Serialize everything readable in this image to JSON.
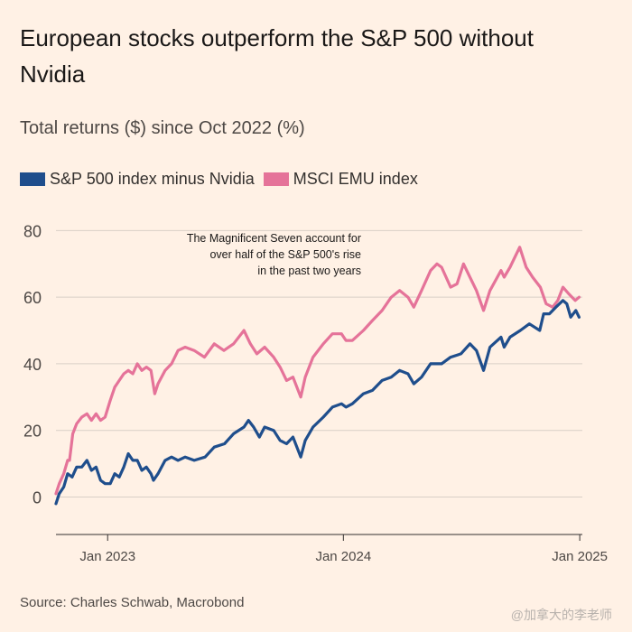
{
  "title": "European stocks outperform the S&P 500 without Nvidia",
  "subtitle": "Total returns ($) since Oct 2022 (%)",
  "source": "Source: Charles Schwab, Macrobond",
  "watermark": "@加拿大的李老师",
  "colors": {
    "background": "#fff1e5",
    "grid": "#d9d0c7",
    "axis": "#33302e",
    "sp500": "#1f4e8c",
    "msci": "#e57399"
  },
  "chart_data": {
    "type": "line",
    "ylim": [
      -8,
      82
    ],
    "yticks": [
      0,
      20,
      40,
      60,
      80
    ],
    "x_range": [
      "2022-10-13",
      "2025-01-05"
    ],
    "xticks": [
      {
        "date": "2023-01-01",
        "label": "Jan 2023"
      },
      {
        "date": "2024-01-01",
        "label": "Jan 2024"
      },
      {
        "date": "2025-01-01",
        "label": "Jan 2025"
      }
    ],
    "annotation": "The Magnificent Seven account for over half of the S&P 500's rise in the past two years",
    "grid": "horizontal",
    "series": [
      {
        "name": "S&P 500 index minus Nvidia",
        "color": "#1f4e8c",
        "points": [
          [
            "2022-10-13",
            -2
          ],
          [
            "2022-10-18",
            1
          ],
          [
            "2022-10-25",
            3
          ],
          [
            "2022-10-31",
            7
          ],
          [
            "2022-11-07",
            6
          ],
          [
            "2022-11-14",
            9
          ],
          [
            "2022-11-22",
            9
          ],
          [
            "2022-11-30",
            11
          ],
          [
            "2022-12-07",
            8
          ],
          [
            "2022-12-14",
            9
          ],
          [
            "2022-12-21",
            5
          ],
          [
            "2022-12-28",
            4
          ],
          [
            "2023-01-05",
            4
          ],
          [
            "2023-01-12",
            7
          ],
          [
            "2023-01-19",
            6
          ],
          [
            "2023-01-26",
            9
          ],
          [
            "2023-02-02",
            13
          ],
          [
            "2023-02-09",
            11
          ],
          [
            "2023-02-16",
            11
          ],
          [
            "2023-02-23",
            8
          ],
          [
            "2023-03-02",
            9
          ],
          [
            "2023-03-09",
            7
          ],
          [
            "2023-03-13",
            5
          ],
          [
            "2023-03-20",
            7
          ],
          [
            "2023-03-31",
            11
          ],
          [
            "2023-04-10",
            12
          ],
          [
            "2023-04-20",
            11
          ],
          [
            "2023-05-01",
            12
          ],
          [
            "2023-05-15",
            11
          ],
          [
            "2023-06-01",
            12
          ],
          [
            "2023-06-15",
            15
          ],
          [
            "2023-07-01",
            16
          ],
          [
            "2023-07-15",
            19
          ],
          [
            "2023-07-31",
            21
          ],
          [
            "2023-08-07",
            23
          ],
          [
            "2023-08-15",
            21
          ],
          [
            "2023-08-24",
            18
          ],
          [
            "2023-09-01",
            21
          ],
          [
            "2023-09-15",
            20
          ],
          [
            "2023-09-25",
            17
          ],
          [
            "2023-10-05",
            16
          ],
          [
            "2023-10-15",
            18
          ],
          [
            "2023-10-27",
            12
          ],
          [
            "2023-11-03",
            17
          ],
          [
            "2023-11-15",
            21
          ],
          [
            "2023-12-01",
            24
          ],
          [
            "2023-12-15",
            27
          ],
          [
            "2023-12-29",
            28
          ],
          [
            "2024-01-05",
            27
          ],
          [
            "2024-01-15",
            28
          ],
          [
            "2024-02-01",
            31
          ],
          [
            "2024-02-15",
            32
          ],
          [
            "2024-03-01",
            35
          ],
          [
            "2024-03-15",
            36
          ],
          [
            "2024-03-28",
            38
          ],
          [
            "2024-04-10",
            37
          ],
          [
            "2024-04-19",
            34
          ],
          [
            "2024-05-01",
            36
          ],
          [
            "2024-05-15",
            40
          ],
          [
            "2024-06-01",
            40
          ],
          [
            "2024-06-15",
            42
          ],
          [
            "2024-07-01",
            43
          ],
          [
            "2024-07-15",
            46
          ],
          [
            "2024-07-25",
            44
          ],
          [
            "2024-08-05",
            38
          ],
          [
            "2024-08-15",
            45
          ],
          [
            "2024-09-01",
            48
          ],
          [
            "2024-09-06",
            45
          ],
          [
            "2024-09-15",
            48
          ],
          [
            "2024-10-01",
            50
          ],
          [
            "2024-10-15",
            52
          ],
          [
            "2024-10-31",
            50
          ],
          [
            "2024-11-06",
            55
          ],
          [
            "2024-11-15",
            55
          ],
          [
            "2024-11-25",
            57
          ],
          [
            "2024-12-06",
            59
          ],
          [
            "2024-12-12",
            58
          ],
          [
            "2024-12-18",
            54
          ],
          [
            "2024-12-26",
            56
          ],
          [
            "2024-12-31",
            54
          ]
        ]
      },
      {
        "name": "MSCI EMU index",
        "color": "#e57399",
        "points": [
          [
            "2022-10-13",
            1
          ],
          [
            "2022-10-18",
            4
          ],
          [
            "2022-10-25",
            7
          ],
          [
            "2022-10-31",
            11
          ],
          [
            "2022-11-03",
            11
          ],
          [
            "2022-11-08",
            19
          ],
          [
            "2022-11-14",
            22
          ],
          [
            "2022-11-22",
            24
          ],
          [
            "2022-11-30",
            25
          ],
          [
            "2022-12-07",
            23
          ],
          [
            "2022-12-14",
            25
          ],
          [
            "2022-12-21",
            23
          ],
          [
            "2022-12-28",
            24
          ],
          [
            "2023-01-05",
            29
          ],
          [
            "2023-01-12",
            33
          ],
          [
            "2023-01-19",
            35
          ],
          [
            "2023-01-26",
            37
          ],
          [
            "2023-02-02",
            38
          ],
          [
            "2023-02-09",
            37
          ],
          [
            "2023-02-16",
            40
          ],
          [
            "2023-02-23",
            38
          ],
          [
            "2023-03-02",
            39
          ],
          [
            "2023-03-09",
            38
          ],
          [
            "2023-03-15",
            31
          ],
          [
            "2023-03-20",
            34
          ],
          [
            "2023-03-31",
            38
          ],
          [
            "2023-04-10",
            40
          ],
          [
            "2023-04-20",
            44
          ],
          [
            "2023-05-01",
            45
          ],
          [
            "2023-05-15",
            44
          ],
          [
            "2023-05-31",
            42
          ],
          [
            "2023-06-15",
            46
          ],
          [
            "2023-06-30",
            44
          ],
          [
            "2023-07-15",
            46
          ],
          [
            "2023-07-31",
            50
          ],
          [
            "2023-08-10",
            46
          ],
          [
            "2023-08-20",
            43
          ],
          [
            "2023-09-01",
            45
          ],
          [
            "2023-09-15",
            42
          ],
          [
            "2023-09-25",
            39
          ],
          [
            "2023-10-05",
            35
          ],
          [
            "2023-10-15",
            36
          ],
          [
            "2023-10-27",
            30
          ],
          [
            "2023-11-03",
            36
          ],
          [
            "2023-11-15",
            42
          ],
          [
            "2023-12-01",
            46
          ],
          [
            "2023-12-15",
            49
          ],
          [
            "2023-12-29",
            49
          ],
          [
            "2024-01-05",
            47
          ],
          [
            "2024-01-15",
            47
          ],
          [
            "2024-02-01",
            50
          ],
          [
            "2024-02-15",
            53
          ],
          [
            "2024-03-01",
            56
          ],
          [
            "2024-03-15",
            60
          ],
          [
            "2024-03-28",
            62
          ],
          [
            "2024-04-10",
            60
          ],
          [
            "2024-04-19",
            57
          ],
          [
            "2024-05-01",
            62
          ],
          [
            "2024-05-15",
            68
          ],
          [
            "2024-05-25",
            70
          ],
          [
            "2024-06-01",
            69
          ],
          [
            "2024-06-15",
            63
          ],
          [
            "2024-06-25",
            64
          ],
          [
            "2024-07-05",
            70
          ],
          [
            "2024-07-15",
            66
          ],
          [
            "2024-07-25",
            62
          ],
          [
            "2024-08-05",
            56
          ],
          [
            "2024-08-15",
            62
          ],
          [
            "2024-09-01",
            68
          ],
          [
            "2024-09-06",
            66
          ],
          [
            "2024-09-15",
            69
          ],
          [
            "2024-09-30",
            75
          ],
          [
            "2024-10-10",
            69
          ],
          [
            "2024-10-20",
            66
          ],
          [
            "2024-11-01",
            63
          ],
          [
            "2024-11-10",
            58
          ],
          [
            "2024-11-20",
            57
          ],
          [
            "2024-11-28",
            59
          ],
          [
            "2024-12-06",
            63
          ],
          [
            "2024-12-15",
            61
          ],
          [
            "2024-12-25",
            59
          ],
          [
            "2024-12-31",
            60
          ]
        ]
      }
    ]
  }
}
